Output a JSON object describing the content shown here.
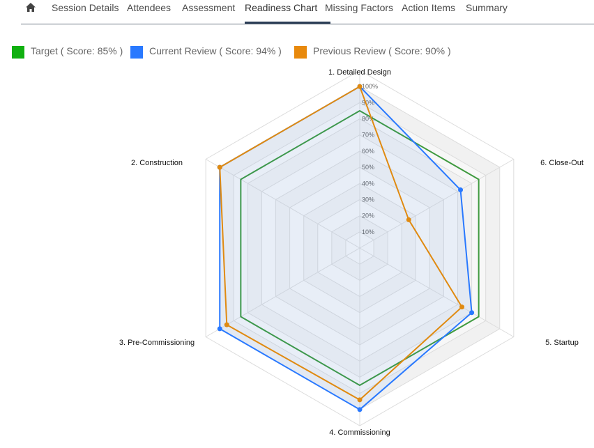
{
  "nav": {
    "home_icon": "home-icon",
    "tabs": [
      {
        "label": "Session Details"
      },
      {
        "label": "Attendees"
      },
      {
        "label": "Assessment"
      },
      {
        "label": "Readiness Chart",
        "active": true
      },
      {
        "label": "Missing Factors"
      },
      {
        "label": "Action Items"
      },
      {
        "label": "Summary"
      }
    ]
  },
  "legend": [
    {
      "label": "Target ( Score: 85% )",
      "color": "#10b010"
    },
    {
      "label": "Current Review ( Score: 94% )",
      "color": "#2979ff"
    },
    {
      "label": "Previous Review ( Score: 90% )",
      "color": "#e8890c"
    }
  ],
  "chart_data": {
    "type": "radar",
    "axes": [
      "1. Detailed Design",
      "2. Construction",
      "3. Pre-Commissioning",
      "4. Commissioning",
      "5. Startup",
      "6. Close-Out"
    ],
    "ticks": [
      "10%",
      "20%",
      "30%",
      "40%",
      "50%",
      "60%",
      "70%",
      "80%",
      "90%",
      "100%"
    ],
    "range": [
      0,
      110
    ],
    "series": [
      {
        "name": "Target",
        "color": "#3f9a3f",
        "fill": "none",
        "values": [
          85,
          85,
          85,
          85,
          85,
          85
        ]
      },
      {
        "name": "Current Review",
        "color": "#2979ff",
        "fill": "rgba(41,121,255,0.07)",
        "values": [
          100,
          100,
          100,
          100,
          80,
          72
        ]
      },
      {
        "name": "Previous Review",
        "color": "#e08a10",
        "fill": "none",
        "values": [
          100,
          100,
          95,
          94,
          73,
          35
        ]
      }
    ]
  }
}
